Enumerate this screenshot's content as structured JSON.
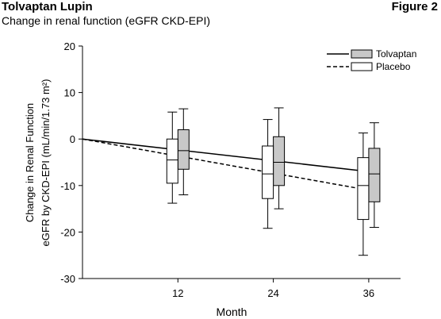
{
  "header": {
    "title": "Tolvaptan Lupin",
    "subtitle": "Change in renal function (eGFR CKD-EPI)",
    "figure_label": "Figure 2"
  },
  "chart_data": {
    "type": "line",
    "xlabel": "Month",
    "ylabel_line1": "Change in Renal Function",
    "ylabel_line2": "eGFR by CKD-EPI (mL/min/1.73 m²)",
    "xlim": [
      0,
      40
    ],
    "ylim": [
      -30,
      20
    ],
    "x_ticks": [
      12,
      24,
      36
    ],
    "y_ticks": [
      20,
      10,
      0,
      -10,
      -20,
      -30
    ],
    "legend_placement": "top-right",
    "series": [
      {
        "name": "Tolvaptan",
        "line_style": "solid",
        "box_fill": "#c8c8c8",
        "line": [
          [
            0,
            0
          ],
          [
            36,
            -7
          ]
        ],
        "boxes": [
          {
            "x": 12,
            "whisker_low": -12,
            "q1": -6.5,
            "median": -2.5,
            "q3": 2,
            "whisker_high": 6.5
          },
          {
            "x": 24,
            "whisker_low": -15,
            "q1": -10,
            "median": -5,
            "q3": 0.5,
            "whisker_high": 6.7
          },
          {
            "x": 36,
            "whisker_low": -19,
            "q1": -13.5,
            "median": -7.5,
            "q3": -2,
            "whisker_high": 3.5
          }
        ]
      },
      {
        "name": "Placebo",
        "line_style": "dashed",
        "box_fill": "#ffffff",
        "line": [
          [
            0,
            0
          ],
          [
            36,
            -11
          ]
        ],
        "boxes": [
          {
            "x": 12,
            "whisker_low": -13.8,
            "q1": -9.5,
            "median": -4.5,
            "q3": 0,
            "whisker_high": 5.8
          },
          {
            "x": 24,
            "whisker_low": -19.2,
            "q1": -12.8,
            "median": -7.5,
            "q3": -1.5,
            "whisker_high": 4.2
          },
          {
            "x": 36,
            "whisker_low": -25,
            "q1": -17.3,
            "median": -10,
            "q3": -4,
            "whisker_high": 1.3
          }
        ]
      }
    ]
  }
}
